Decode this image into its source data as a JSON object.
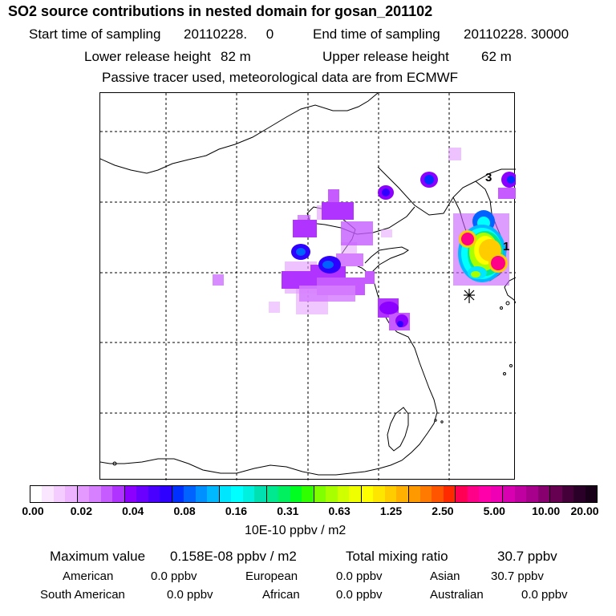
{
  "header": {
    "title": "SO2 source contributions in nested domain for gosan_201102",
    "start_label": "Start time of sampling",
    "start_value": "20110228.     0",
    "end_label": "End time of sampling",
    "end_value": "20110228. 30000",
    "lower_label": "Lower release height",
    "lower_value": "82 m",
    "upper_label": "Upper release height",
    "upper_value": "62 m",
    "note": "Passive tracer used, meteorological data are from ECMWF"
  },
  "map": {
    "receptor_marker": "asterisk-station-icon",
    "labels": {
      "contour_1": "1",
      "contour_3": "3"
    }
  },
  "colorbar": {
    "ticks": [
      "0.00",
      "0.02",
      "0.04",
      "0.08",
      "0.16",
      "0.31",
      "0.63",
      "1.25",
      "2.50",
      "5.00",
      "10.00",
      "20.00"
    ],
    "unit": "10E-10 ppbv / m2",
    "colors": [
      [
        "#ffffff",
        "#fbe6ff",
        "#f5ccff",
        "#eeb3ff"
      ],
      [
        "#e399ff",
        "#d67fff",
        "#c65cff",
        "#b033ff"
      ],
      [
        "#8c00ff",
        "#6a00ff",
        "#4a00ff",
        "#2d00ff"
      ],
      [
        "#0030ff",
        "#0062ff",
        "#0090ff",
        "#00b8ff"
      ],
      [
        "#00e6ff",
        "#00ffff",
        "#00f0e0",
        "#00e0b0"
      ],
      [
        "#00e890",
        "#00f060",
        "#00ff20",
        "#30ff00"
      ],
      [
        "#80ff00",
        "#a8ff00",
        "#d0ff00",
        "#f0ff00"
      ],
      [
        "#ffff00",
        "#ffe600",
        "#ffcc00",
        "#ffb000"
      ],
      [
        "#ff9900",
        "#ff7a00",
        "#ff5500",
        "#ff2a00"
      ],
      [
        "#ff0055",
        "#ff0088",
        "#ff00aa",
        "#f000b4"
      ],
      [
        "#d800b0",
        "#c000a0",
        "#a8008c",
        "#880070"
      ],
      [
        "#660050",
        "#440038",
        "#2a0028",
        "#180018"
      ]
    ]
  },
  "stats": {
    "max_label": "Maximum value",
    "max_value": "0.158E-08 ppbv / m2",
    "total_label": "Total mixing ratio",
    "total_value": "30.7 ppbv",
    "american_label": "American",
    "american_value": "0.0 ppbv",
    "european_label": "European",
    "european_value": "0.0 ppbv",
    "asian_label": "Asian",
    "asian_value": "30.7 ppbv",
    "south_american_label": "South American",
    "south_american_value": "0.0 ppbv",
    "african_label": "African",
    "african_value": "0.0 ppbv",
    "australian_label": "Australian",
    "australian_value": "0.0 ppbv"
  }
}
